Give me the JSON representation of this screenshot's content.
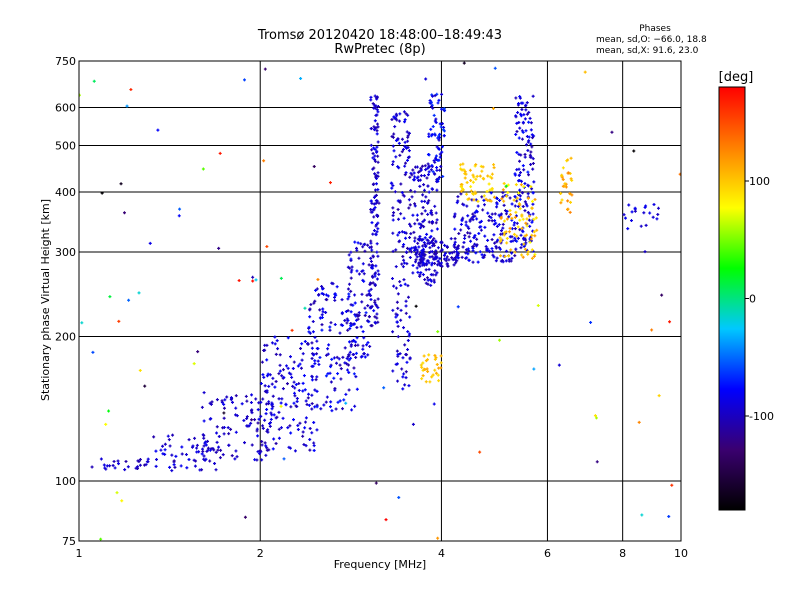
{
  "chart_data": {
    "type": "scatter",
    "title": "Tromsø 20120420 18:48:00–18:49:43",
    "subtitle": "RwPretec (8p)",
    "xlabel": "Frequency [MHz]",
    "ylabel": "Stationary phase Virtual Height [km]",
    "x_scale": "log",
    "y_scale": "log",
    "xlim": [
      1,
      10
    ],
    "ylim": [
      75,
      750
    ],
    "x_ticks": [
      1,
      2,
      4,
      6,
      8,
      10
    ],
    "y_ticks": [
      75,
      100,
      200,
      300,
      400,
      500,
      600,
      750
    ],
    "grid": true,
    "phase_info": {
      "heading": "Phases",
      "line_o": "mean, sd,O: −66.0, 18.8",
      "line_x": "mean, sd,X:  91.6, 23.0"
    },
    "colorbar": {
      "label": "[deg]",
      "range": [
        -180,
        180
      ],
      "ticks": [
        100,
        0,
        -100
      ],
      "colormap": [
        "#000000",
        "#3a0070",
        "#0000ff",
        "#00c8ff",
        "#00ff00",
        "#ffff00",
        "#ff8000",
        "#ff0000"
      ]
    },
    "clusters": [
      {
        "f": [
          1.05,
          1.3
        ],
        "h": [
          105,
          112
        ],
        "phase": [
          -110,
          -85
        ],
        "n": 25
      },
      {
        "f": [
          1.3,
          1.7
        ],
        "h": [
          105,
          125
        ],
        "phase": [
          -110,
          -80
        ],
        "n": 55
      },
      {
        "f": [
          1.6,
          2.1
        ],
        "h": [
          110,
          155
        ],
        "phase": [
          -110,
          -80
        ],
        "n": 110
      },
      {
        "f": [
          2.0,
          2.5
        ],
        "h": [
          115,
          200
        ],
        "phase": [
          -110,
          -75
        ],
        "n": 150
      },
      {
        "f": [
          2.4,
          2.9
        ],
        "h": [
          140,
          260
        ],
        "phase": [
          -110,
          -70
        ],
        "n": 150
      },
      {
        "f": [
          2.8,
          3.05
        ],
        "h": [
          180,
          320
        ],
        "phase": [
          -110,
          -70
        ],
        "n": 90
      },
      {
        "f": [
          3.05,
          3.15
        ],
        "h": [
          210,
          640
        ],
        "phase": [
          -110,
          -80
        ],
        "n": 140
      },
      {
        "f": [
          3.3,
          3.55
        ],
        "h": [
          155,
          600
        ],
        "phase": [
          -110,
          -80
        ],
        "n": 160
      },
      {
        "f": [
          3.55,
          3.95
        ],
        "h": [
          255,
          460
        ],
        "phase": [
          -110,
          -80
        ],
        "n": 160
      },
      {
        "f": [
          3.6,
          4.3
        ],
        "h": [
          280,
          320
        ],
        "phase": [
          -110,
          -85
        ],
        "n": 110
      },
      {
        "f": [
          3.8,
          4.05
        ],
        "h": [
          420,
          640
        ],
        "phase": [
          -100,
          -60
        ],
        "n": 70
      },
      {
        "f": [
          4.2,
          5.3
        ],
        "h": [
          285,
          400
        ],
        "phase": [
          -110,
          -75
        ],
        "n": 180
      },
      {
        "f": [
          5.3,
          5.7
        ],
        "h": [
          300,
          640
        ],
        "phase": [
          -110,
          -70
        ],
        "n": 140
      },
      {
        "f": [
          4.3,
          4.9
        ],
        "h": [
          380,
          460
        ],
        "phase": [
          85,
          110
        ],
        "n": 60
      },
      {
        "f": [
          5.0,
          5.8
        ],
        "h": [
          290,
          420
        ],
        "phase": [
          75,
          120
        ],
        "n": 80
      },
      {
        "f": [
          3.7,
          4.0
        ],
        "h": [
          160,
          185
        ],
        "phase": [
          90,
          115
        ],
        "n": 30
      },
      {
        "f": [
          6.3,
          6.6
        ],
        "h": [
          360,
          480
        ],
        "phase": [
          90,
          130
        ],
        "n": 30
      },
      {
        "f": [
          8.0,
          9.2
        ],
        "h": [
          330,
          380
        ],
        "phase": [
          -100,
          -80
        ],
        "n": 20
      },
      {
        "f": [
          1.0,
          10.0
        ],
        "h": [
          75,
          750
        ],
        "phase": [
          -180,
          180
        ],
        "n": 90
      }
    ]
  }
}
